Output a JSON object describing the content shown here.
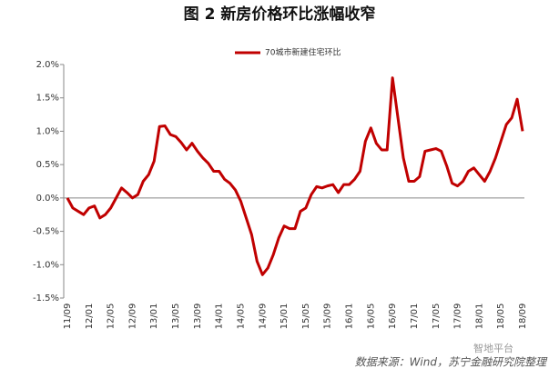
{
  "chart_data": {
    "type": "line",
    "title": "图 2  新房价格环比涨幅收窄",
    "source": "数据来源：Wind，苏宁金融研究院整理",
    "watermark": "智地平台",
    "categories": [
      "11/09",
      null,
      null,
      null,
      "12/01",
      null,
      null,
      null,
      "12/05",
      null,
      null,
      null,
      "12/09",
      null,
      null,
      null,
      "13/01",
      null,
      null,
      null,
      "13/05",
      null,
      null,
      null,
      "13/09",
      null,
      null,
      null,
      "14/01",
      null,
      null,
      null,
      "14/05",
      null,
      null,
      null,
      "14/09",
      null,
      null,
      null,
      "15/01",
      null,
      null,
      null,
      "15/05",
      null,
      null,
      null,
      "15/09",
      null,
      null,
      null,
      "16/01",
      null,
      null,
      null,
      "16/05",
      null,
      null,
      null,
      "16/09",
      null,
      null,
      null,
      "17/01",
      null,
      null,
      null,
      "17/05",
      null,
      null,
      null,
      "17/09",
      null,
      null,
      null,
      "18/01",
      null,
      null,
      null,
      "18/05",
      null,
      null,
      null,
      "18/09"
    ],
    "series": [
      {
        "name": "70城市新建住宅环比",
        "color": "#c00000",
        "values": [
          0.0,
          -0.15,
          -0.2,
          -0.25,
          -0.15,
          -0.12,
          -0.3,
          -0.25,
          -0.15,
          0.0,
          0.15,
          0.08,
          0.0,
          0.05,
          0.25,
          0.35,
          0.55,
          1.07,
          1.08,
          0.95,
          0.92,
          0.83,
          0.72,
          0.82,
          0.7,
          0.6,
          0.52,
          0.4,
          0.4,
          0.28,
          0.22,
          0.12,
          -0.05,
          -0.3,
          -0.55,
          -0.95,
          -1.15,
          -1.05,
          -0.85,
          -0.6,
          -0.42,
          -0.46,
          -0.46,
          -0.2,
          -0.15,
          0.05,
          0.17,
          0.15,
          0.18,
          0.2,
          0.08,
          0.2,
          0.2,
          0.28,
          0.4,
          0.85,
          1.05,
          0.82,
          0.72,
          0.72,
          1.8,
          1.2,
          0.6,
          0.25,
          0.25,
          0.32,
          0.7,
          0.72,
          0.74,
          0.7,
          0.48,
          0.22,
          0.18,
          0.25,
          0.4,
          0.45,
          0.35,
          0.25,
          0.4,
          0.6,
          0.85,
          1.1,
          1.2,
          1.48,
          1.0
        ]
      }
    ],
    "ylim": [
      -1.5,
      2.0
    ],
    "yticks": [
      {
        "value": -1.5,
        "label": "-1.5%"
      },
      {
        "value": -1.0,
        "label": "-1.0%"
      },
      {
        "value": -0.5,
        "label": "-0.5%"
      },
      {
        "value": 0,
        "label": "0.0%"
      },
      {
        "value": 0.5,
        "label": "0.5%"
      },
      {
        "value": 1.0,
        "label": "1.0%"
      },
      {
        "value": 1.5,
        "label": "1.5%"
      },
      {
        "value": 2.0,
        "label": "2.0%"
      }
    ],
    "legend": "top",
    "grid": false
  }
}
